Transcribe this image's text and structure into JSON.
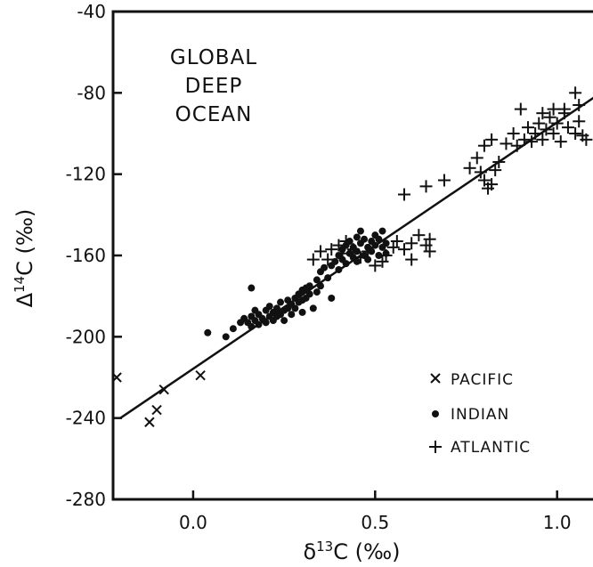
{
  "chart_data": {
    "type": "scatter",
    "title_lines": [
      "GLOBAL",
      "DEEP",
      "OCEAN"
    ],
    "xlabel": {
      "symbol": "δ",
      "sup": "13",
      "rest": "C (‰)"
    },
    "ylabel": {
      "symbol": "Δ",
      "sup": "14",
      "rest": "C (‰)"
    },
    "xlim": [
      -0.22,
      1.15
    ],
    "ylim": [
      -280,
      -40
    ],
    "x_ticks": [
      0.0,
      0.5,
      1.0
    ],
    "x_tick_labels": [
      "0.0",
      "0.5",
      "1.0"
    ],
    "y_ticks": [
      -40,
      -80,
      -120,
      -160,
      -200,
      -240,
      -280
    ],
    "y_tick_labels": [
      "-40",
      "-80",
      "-120",
      "-160",
      "-200",
      "-240",
      "-280"
    ],
    "grid": false,
    "legend_position": "bottom-right",
    "legend": [
      {
        "series": "Pacific",
        "label": "PACIFIC",
        "marker": "x"
      },
      {
        "series": "Indian",
        "label": "INDIAN",
        "marker": "dot"
      },
      {
        "series": "Atlantic",
        "label": "ATLANTIC",
        "marker": "plus"
      }
    ],
    "regression_line": {
      "x": [
        -0.2,
        1.12
      ],
      "y": [
        -240,
        -80
      ]
    },
    "series": [
      {
        "name": "Pacific",
        "marker": "x",
        "points": [
          [
            -0.21,
            -220
          ],
          [
            -0.12,
            -242
          ],
          [
            -0.1,
            -236
          ],
          [
            -0.08,
            -226
          ],
          [
            0.02,
            -219
          ]
        ]
      },
      {
        "name": "Indian",
        "marker": "dot",
        "points": [
          [
            0.04,
            -198
          ],
          [
            0.09,
            -200
          ],
          [
            0.11,
            -196
          ],
          [
            0.13,
            -193
          ],
          [
            0.14,
            -191
          ],
          [
            0.15,
            -193
          ],
          [
            0.16,
            -195
          ],
          [
            0.16,
            -190
          ],
          [
            0.17,
            -192
          ],
          [
            0.17,
            -187
          ],
          [
            0.16,
            -176
          ],
          [
            0.18,
            -189
          ],
          [
            0.18,
            -194
          ],
          [
            0.19,
            -191
          ],
          [
            0.2,
            -187
          ],
          [
            0.2,
            -193
          ],
          [
            0.21,
            -190
          ],
          [
            0.21,
            -185
          ],
          [
            0.22,
            -192
          ],
          [
            0.22,
            -188
          ],
          [
            0.23,
            -186
          ],
          [
            0.23,
            -190
          ],
          [
            0.24,
            -183
          ],
          [
            0.24,
            -189
          ],
          [
            0.25,
            -187
          ],
          [
            0.25,
            -192
          ],
          [
            0.26,
            -182
          ],
          [
            0.26,
            -186
          ],
          [
            0.27,
            -184
          ],
          [
            0.27,
            -189
          ],
          [
            0.28,
            -181
          ],
          [
            0.28,
            -186
          ],
          [
            0.29,
            -179
          ],
          [
            0.29,
            -183
          ],
          [
            0.3,
            -177
          ],
          [
            0.3,
            -182
          ],
          [
            0.3,
            -188
          ],
          [
            0.31,
            -176
          ],
          [
            0.31,
            -181
          ],
          [
            0.32,
            -175
          ],
          [
            0.32,
            -179
          ],
          [
            0.33,
            -186
          ],
          [
            0.34,
            -172
          ],
          [
            0.34,
            -178
          ],
          [
            0.35,
            -175
          ],
          [
            0.35,
            -168
          ],
          [
            0.36,
            -166
          ],
          [
            0.37,
            -171
          ],
          [
            0.38,
            -165
          ],
          [
            0.38,
            -181
          ],
          [
            0.39,
            -163
          ],
          [
            0.4,
            -167
          ],
          [
            0.4,
            -160
          ],
          [
            0.41,
            -162
          ],
          [
            0.41,
            -157
          ],
          [
            0.42,
            -164
          ],
          [
            0.42,
            -155
          ],
          [
            0.43,
            -159
          ],
          [
            0.43,
            -153
          ],
          [
            0.44,
            -161
          ],
          [
            0.44,
            -156
          ],
          [
            0.45,
            -151
          ],
          [
            0.45,
            -158
          ],
          [
            0.45,
            -163
          ],
          [
            0.46,
            -148
          ],
          [
            0.46,
            -154
          ],
          [
            0.47,
            -160
          ],
          [
            0.47,
            -152
          ],
          [
            0.48,
            -156
          ],
          [
            0.48,
            -162
          ],
          [
            0.49,
            -153
          ],
          [
            0.49,
            -158
          ],
          [
            0.5,
            -150
          ],
          [
            0.5,
            -155
          ],
          [
            0.51,
            -160
          ],
          [
            0.51,
            -152
          ],
          [
            0.52,
            -148
          ],
          [
            0.52,
            -156
          ],
          [
            0.53,
            -154
          ],
          [
            0.53,
            -159
          ]
        ]
      },
      {
        "name": "Atlantic",
        "marker": "plus",
        "points": [
          [
            0.33,
            -162
          ],
          [
            0.35,
            -158
          ],
          [
            0.37,
            -162
          ],
          [
            0.38,
            -157
          ],
          [
            0.4,
            -155
          ],
          [
            0.41,
            -159
          ],
          [
            0.42,
            -153
          ],
          [
            0.44,
            -157
          ],
          [
            0.46,
            -161
          ],
          [
            0.48,
            -158
          ],
          [
            0.5,
            -165
          ],
          [
            0.52,
            -163
          ],
          [
            0.53,
            -160
          ],
          [
            0.55,
            -156
          ],
          [
            0.56,
            -153
          ],
          [
            0.58,
            -157
          ],
          [
            0.6,
            -154
          ],
          [
            0.6,
            -162
          ],
          [
            0.62,
            -150
          ],
          [
            0.64,
            -155
          ],
          [
            0.65,
            -152
          ],
          [
            0.65,
            -158
          ],
          [
            0.58,
            -130
          ],
          [
            0.64,
            -126
          ],
          [
            0.69,
            -123
          ],
          [
            0.76,
            -117
          ],
          [
            0.78,
            -112
          ],
          [
            0.79,
            -119
          ],
          [
            0.8,
            -123
          ],
          [
            0.81,
            -127
          ],
          [
            0.82,
            -125
          ],
          [
            0.83,
            -118
          ],
          [
            0.84,
            -114
          ],
          [
            0.8,
            -106
          ],
          [
            0.82,
            -103
          ],
          [
            0.86,
            -105
          ],
          [
            0.88,
            -100
          ],
          [
            0.89,
            -106
          ],
          [
            0.91,
            -103
          ],
          [
            0.92,
            -97
          ],
          [
            0.93,
            -104
          ],
          [
            0.94,
            -100
          ],
          [
            0.95,
            -95
          ],
          [
            0.96,
            -103
          ],
          [
            0.97,
            -98
          ],
          [
            0.98,
            -92
          ],
          [
            0.99,
            -100
          ],
          [
            1.0,
            -95
          ],
          [
            1.01,
            -104
          ],
          [
            1.02,
            -90
          ],
          [
            1.03,
            -97
          ],
          [
            1.05,
            -100
          ],
          [
            1.06,
            -94
          ],
          [
            1.07,
            -101
          ],
          [
            1.08,
            -103
          ],
          [
            1.05,
            -80
          ],
          [
            1.06,
            -86
          ],
          [
            1.02,
            -88
          ],
          [
            0.99,
            -88
          ],
          [
            0.96,
            -90
          ],
          [
            0.9,
            -88
          ]
        ]
      }
    ]
  }
}
